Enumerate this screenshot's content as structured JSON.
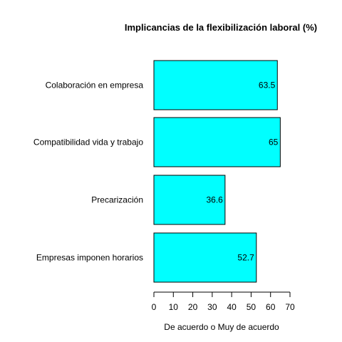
{
  "chart_data": {
    "type": "bar",
    "orientation": "horizontal",
    "title": "Implicancias de la flexibilización laboral (%)",
    "xlabel": "De acuerdo o Muy de acuerdo",
    "ylabel": "",
    "categories": [
      "Colaboración en empresa",
      "Compatibilidad vida y trabajo",
      "Precarización",
      "Empresas imponen horarios"
    ],
    "values": [
      63.5,
      65,
      36.6,
      52.7
    ],
    "value_labels": [
      "63.5",
      "65",
      "36.6",
      "52.7"
    ],
    "xlim": [
      0,
      70
    ],
    "xticks": [
      0,
      10,
      20,
      30,
      40,
      50,
      60,
      70
    ],
    "bar_color": "#00ffff",
    "bar_border_color": "#000000",
    "grid": false,
    "legend": "none"
  }
}
